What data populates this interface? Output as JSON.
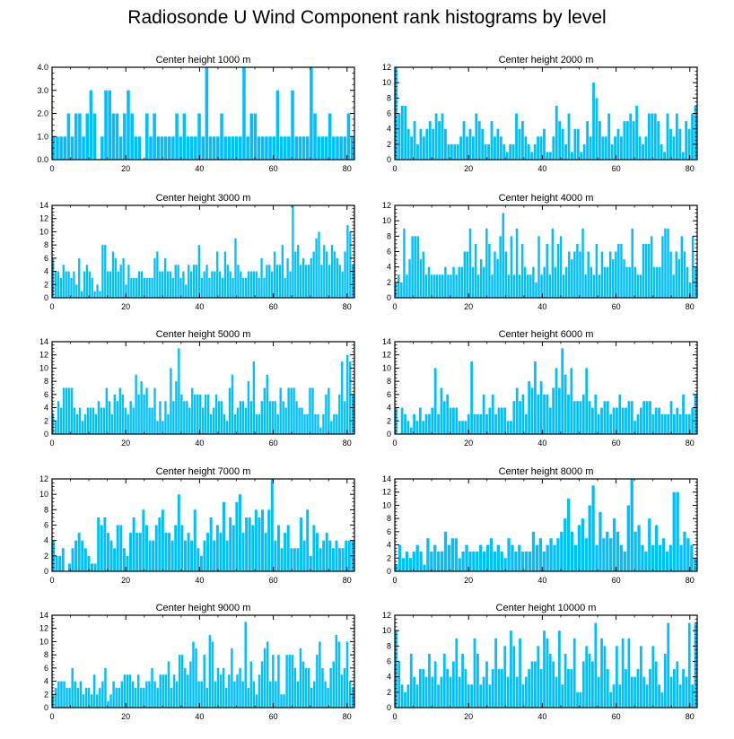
{
  "figure_title": "Radiosonde U Wind Component rank histograms by level",
  "bar_color": "#00BFFF",
  "chart_data": [
    {
      "type": "bar",
      "title": "Center height 1000 m",
      "xlim": [
        0,
        82
      ],
      "xticks": [
        0,
        20,
        40,
        60,
        80
      ],
      "ylim": [
        0,
        4
      ],
      "yticks": [
        "0.0",
        "1.0",
        "2.0",
        "3.0",
        "4.0"
      ],
      "values": [
        1,
        1,
        1,
        1,
        2,
        1,
        2,
        2,
        1,
        2,
        3,
        2,
        0,
        1,
        3,
        3,
        2,
        2,
        1,
        2,
        3,
        2,
        1,
        1,
        0,
        2,
        1,
        2,
        1,
        1,
        1,
        1,
        1,
        2,
        1,
        2,
        1,
        1,
        1,
        2,
        1,
        4,
        1,
        1,
        1,
        2,
        1,
        1,
        1,
        1,
        1,
        4,
        1,
        2,
        2,
        1,
        1,
        1,
        1,
        1,
        3,
        1,
        1,
        1,
        3,
        1,
        1,
        1,
        1,
        4,
        2,
        1,
        1,
        1,
        2,
        1,
        1,
        1,
        1,
        2,
        1
      ]
    },
    {
      "type": "bar",
      "title": "Center height 2000 m",
      "xlim": [
        0,
        82
      ],
      "xticks": [
        0,
        20,
        40,
        60,
        80
      ],
      "ylim": [
        0,
        12
      ],
      "yticks": [
        "0",
        "2",
        "4",
        "6",
        "8",
        "10",
        "12"
      ],
      "values": [
        12,
        6,
        7,
        7,
        4,
        3,
        5,
        2,
        4,
        3,
        4,
        5,
        4,
        6,
        5,
        6,
        4,
        2,
        2,
        2,
        2,
        3,
        5,
        3,
        4,
        3,
        6,
        5,
        4,
        2,
        2,
        5,
        3,
        4,
        3,
        2,
        1,
        2,
        2,
        6,
        4,
        5,
        3,
        2,
        1,
        2,
        3,
        3,
        4,
        1,
        1,
        3,
        7,
        5,
        4,
        2,
        6,
        1,
        4,
        4,
        1,
        2,
        5,
        3,
        10,
        8,
        5,
        3,
        3,
        6,
        2,
        3,
        4,
        3,
        5,
        5,
        6,
        5,
        7,
        3,
        2,
        3,
        6,
        6,
        6,
        5,
        2,
        1,
        6,
        4,
        3,
        6,
        4,
        1,
        5,
        4,
        6,
        7
      ]
    },
    {
      "type": "bar",
      "title": "Center height 3000 m",
      "xlim": [
        0,
        82
      ],
      "xticks": [
        0,
        20,
        40,
        60,
        80
      ],
      "ylim": [
        0,
        14
      ],
      "yticks": [
        "0",
        "2",
        "4",
        "6",
        "8",
        "10",
        "12",
        "14"
      ],
      "values": [
        6,
        4,
        4,
        3,
        5,
        4,
        4,
        3,
        4,
        2,
        6,
        1,
        4,
        5,
        4,
        3,
        1,
        2,
        1,
        8,
        8,
        4,
        4,
        7,
        6,
        4,
        5,
        6,
        2,
        5,
        3,
        3,
        3,
        4,
        4,
        3,
        3,
        3,
        3,
        6,
        7,
        4,
        4,
        6,
        4,
        4,
        3,
        5,
        5,
        3,
        4,
        2,
        5,
        4,
        5,
        5,
        8,
        3,
        4,
        5,
        3,
        4,
        4,
        7,
        4,
        3,
        7,
        5,
        4,
        3,
        9,
        5,
        4,
        3,
        3,
        4,
        4,
        4,
        4,
        3,
        6,
        3,
        5,
        5,
        4,
        7,
        5,
        5,
        8,
        3,
        6,
        4,
        14,
        7,
        8,
        5,
        6,
        5,
        5,
        6,
        7,
        9,
        10,
        5,
        8,
        7,
        5,
        8,
        7,
        6,
        5,
        4,
        7,
        11,
        10,
        5
      ]
    },
    {
      "type": "bar",
      "title": "Center height 4000 m",
      "xlim": [
        0,
        82
      ],
      "xticks": [
        0,
        20,
        40,
        60,
        80
      ],
      "ylim": [
        0,
        12
      ],
      "yticks": [
        "0",
        "2",
        "4",
        "6",
        "8",
        "10",
        "12"
      ],
      "values": [
        2,
        3,
        2,
        9,
        3,
        5,
        8,
        8,
        8,
        5,
        6,
        3,
        4,
        3,
        3,
        3,
        3,
        3,
        4,
        3,
        3,
        4,
        3,
        4,
        4,
        6,
        6,
        9,
        4,
        7,
        3,
        5,
        4,
        9,
        7,
        3,
        6,
        5,
        8,
        11,
        6,
        3,
        8,
        3,
        9,
        3,
        7,
        4,
        3,
        3,
        4,
        2,
        8,
        3,
        4,
        7,
        3,
        9,
        4,
        7,
        8,
        3,
        4,
        6,
        5,
        6,
        7,
        6,
        9,
        3,
        6,
        4,
        3,
        7,
        3,
        6,
        4,
        4,
        6,
        5,
        6,
        7,
        7,
        5,
        4,
        4,
        9,
        4,
        3,
        3,
        7,
        7,
        7,
        8,
        4,
        4,
        4,
        8,
        9,
        9,
        6,
        3,
        6,
        5,
        8,
        6,
        4,
        2,
        8,
        4
      ]
    },
    {
      "type": "bar",
      "title": "Center height 5000 m",
      "xlim": [
        0,
        82
      ],
      "xticks": [
        0,
        20,
        40,
        60,
        80
      ],
      "ylim": [
        0,
        14
      ],
      "yticks": [
        "0",
        "2",
        "4",
        "6",
        "8",
        "10",
        "12",
        "14"
      ],
      "values": [
        3,
        2,
        5,
        4,
        7,
        7,
        7,
        7,
        4,
        3,
        4,
        2,
        3,
        4,
        4,
        4,
        3,
        5,
        4,
        4,
        7,
        5,
        3,
        6,
        5,
        7,
        6,
        4,
        3,
        5,
        4,
        9,
        6,
        8,
        6,
        7,
        4,
        4,
        7,
        2,
        5,
        2,
        5,
        3,
        10,
        5,
        8,
        13,
        6,
        5,
        5,
        4,
        7,
        6,
        6,
        6,
        4,
        6,
        6,
        3,
        4,
        6,
        5,
        5,
        3,
        2,
        7,
        9,
        3,
        4,
        5,
        5,
        4,
        8,
        5,
        11,
        3,
        3,
        5,
        7,
        9,
        5,
        5,
        5,
        3,
        7,
        5,
        4,
        7,
        7,
        7,
        5,
        4,
        4,
        3,
        3,
        7,
        7,
        3,
        3,
        1,
        3,
        6,
        7,
        2,
        3,
        3,
        6,
        11,
        5,
        12,
        11,
        6
      ]
    },
    {
      "type": "bar",
      "title": "Center height 6000 m",
      "xlim": [
        0,
        82
      ],
      "xticks": [
        0,
        20,
        40,
        60,
        80
      ],
      "ylim": [
        0,
        14
      ],
      "yticks": [
        "0",
        "2",
        "4",
        "6",
        "8",
        "10",
        "12",
        "14"
      ],
      "values": [
        4,
        0,
        4,
        3,
        2,
        1,
        3,
        2,
        4,
        2,
        3,
        3,
        4,
        10,
        3,
        7,
        5,
        6,
        4,
        4,
        4,
        2,
        2,
        2,
        3,
        11,
        3,
        3,
        3,
        6,
        3,
        4,
        6,
        3,
        4,
        4,
        4,
        2,
        2,
        5,
        7,
        5,
        6,
        3,
        8,
        7,
        11,
        6,
        8,
        6,
        6,
        4,
        7,
        10,
        7,
        13,
        9,
        6,
        10,
        5,
        5,
        5,
        6,
        10,
        5,
        4,
        6,
        3,
        4,
        5,
        5,
        3,
        4,
        4,
        6,
        4,
        4,
        5,
        5,
        2,
        3,
        4,
        5,
        5,
        5,
        3,
        4,
        4,
        3,
        3,
        3,
        5,
        3,
        4,
        3,
        6,
        3,
        3,
        4,
        6
      ]
    },
    {
      "type": "bar",
      "title": "Center height 7000 m",
      "xlim": [
        0,
        82
      ],
      "xticks": [
        0,
        20,
        40,
        60,
        80
      ],
      "ylim": [
        0,
        12
      ],
      "yticks": [
        "0",
        "2",
        "4",
        "6",
        "8",
        "10",
        "12"
      ],
      "values": [
        4,
        2,
        2,
        3,
        0,
        1,
        3,
        4,
        5,
        4,
        3,
        2,
        1,
        1,
        7,
        6,
        7,
        5,
        4,
        3,
        6,
        6,
        3,
        2,
        5,
        7,
        5,
        5,
        8,
        6,
        4,
        4,
        6,
        7,
        8,
        5,
        5,
        4,
        6,
        10,
        6,
        4,
        5,
        4,
        8,
        3,
        2,
        4,
        5,
        7,
        4,
        6,
        5,
        9,
        4,
        7,
        6,
        9,
        10,
        5,
        7,
        7,
        6,
        8,
        7,
        8,
        5,
        8,
        12,
        4,
        6,
        3,
        5,
        6,
        3,
        3,
        3,
        7,
        4,
        8,
        2,
        6,
        5,
        3,
        4,
        5,
        4,
        3,
        4,
        3,
        3,
        4,
        4,
        4
      ]
    },
    {
      "type": "bar",
      "title": "Center height 8000 m",
      "xlim": [
        0,
        82
      ],
      "xticks": [
        0,
        20,
        40,
        60,
        80
      ],
      "ylim": [
        0,
        14
      ],
      "yticks": [
        "0",
        "2",
        "4",
        "6",
        "8",
        "10",
        "12",
        "14"
      ],
      "values": [
        1,
        4,
        2,
        3,
        2,
        3,
        4,
        3,
        1,
        5,
        3,
        4,
        3,
        3,
        6,
        4,
        5,
        5,
        2,
        3,
        4,
        3,
        3,
        3,
        4,
        3,
        4,
        5,
        3,
        4,
        3,
        2,
        5,
        4,
        3,
        4,
        3,
        3,
        3,
        6,
        4,
        5,
        3,
        4,
        5,
        4,
        5,
        6,
        8,
        11,
        6,
        4,
        7,
        8,
        5,
        10,
        13,
        4,
        9,
        5,
        6,
        5,
        8,
        6,
        4,
        3,
        10,
        14,
        6,
        7,
        4,
        3,
        8,
        4,
        7,
        4,
        5,
        3,
        4,
        12,
        12,
        4,
        6,
        5,
        4,
        2
      ]
    },
    {
      "type": "bar",
      "title": "Center height 9000 m",
      "xlim": [
        0,
        82
      ],
      "xticks": [
        0,
        20,
        40,
        60,
        80
      ],
      "ylim": [
        0,
        14
      ],
      "yticks": [
        "0",
        "2",
        "4",
        "6",
        "8",
        "10",
        "12",
        "14"
      ],
      "values": [
        2,
        3,
        4,
        4,
        4,
        3,
        3,
        6,
        4,
        3,
        4,
        2,
        3,
        3,
        2,
        5,
        2,
        3,
        4,
        6,
        1,
        2,
        4,
        3,
        3,
        4,
        5,
        5,
        5,
        4,
        3,
        5,
        3,
        3,
        4,
        4,
        6,
        4,
        3,
        5,
        5,
        5,
        7,
        3,
        5,
        4,
        8,
        8,
        6,
        5,
        7,
        10,
        9,
        4,
        4,
        8,
        3,
        11,
        10,
        4,
        6,
        5,
        6,
        3,
        5,
        9,
        4,
        5,
        6,
        4,
        13,
        3,
        7,
        4,
        2,
        5,
        7,
        9,
        10,
        4,
        8,
        4,
        8,
        2,
        2,
        8,
        8,
        8,
        6,
        4,
        9,
        7,
        6,
        6,
        3,
        4,
        8,
        10,
        6,
        4,
        3,
        6,
        7,
        11,
        10,
        5,
        6,
        10,
        4,
        3
      ]
    },
    {
      "type": "bar",
      "title": "Center height 10000 m",
      "xlim": [
        0,
        82
      ],
      "xticks": [
        0,
        20,
        40,
        60,
        80
      ],
      "ylim": [
        0,
        12
      ],
      "yticks": [
        "0",
        "2",
        "4",
        "6",
        "8",
        "10",
        "12"
      ],
      "values": [
        10,
        6,
        3,
        2,
        3,
        7,
        4,
        3,
        5,
        5,
        4,
        7,
        4,
        6,
        3,
        4,
        7,
        5,
        4,
        6,
        9,
        4,
        7,
        5,
        3,
        3,
        9,
        7,
        3,
        4,
        6,
        3,
        5,
        9,
        5,
        5,
        8,
        4,
        10,
        8,
        4,
        9,
        3,
        4,
        5,
        6,
        6,
        8,
        5,
        10,
        9,
        7,
        6,
        4,
        10,
        3,
        7,
        5,
        5,
        9,
        2,
        2,
        6,
        8,
        7,
        6,
        11,
        4,
        9,
        8,
        5,
        2,
        3,
        8,
        3,
        9,
        5,
        9,
        4,
        4,
        5,
        8,
        4,
        3,
        5,
        8,
        6,
        3,
        2,
        7,
        11,
        4,
        5,
        6,
        3,
        5,
        4,
        11,
        3,
        11
      ]
    }
  ]
}
